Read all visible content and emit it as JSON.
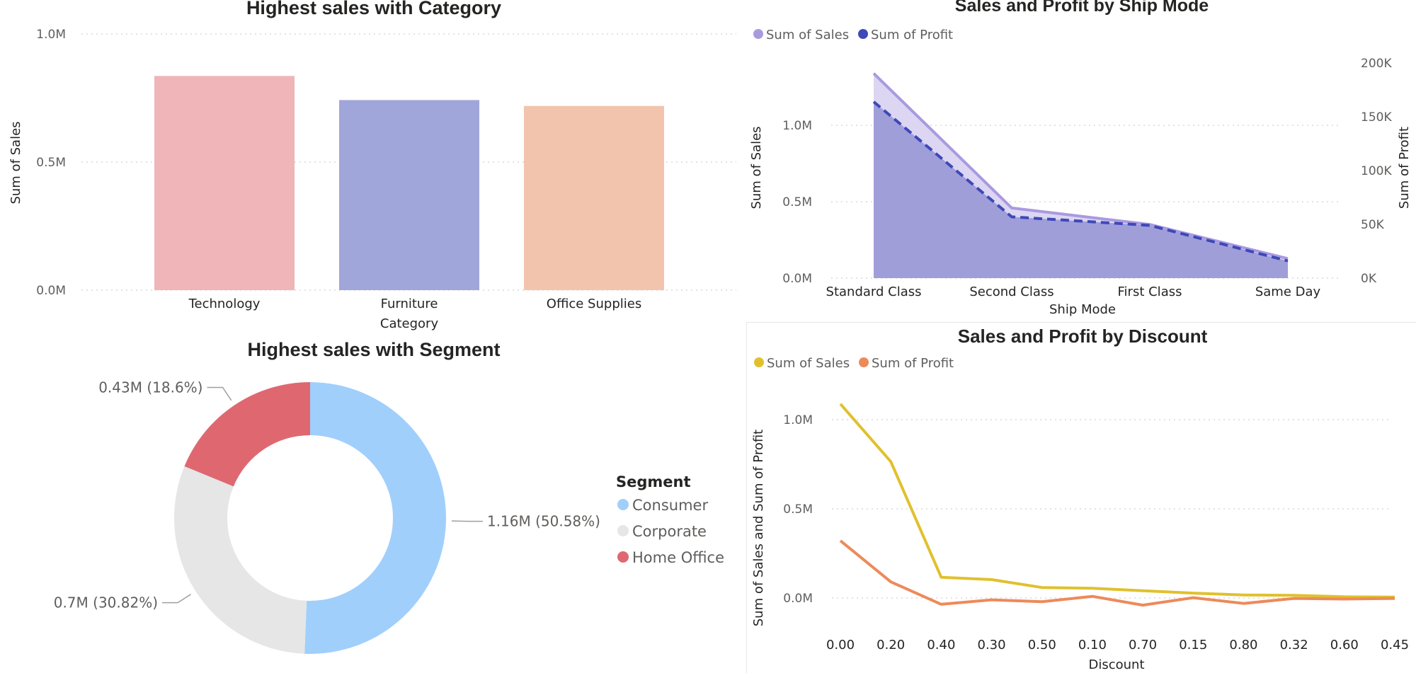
{
  "chart_data": [
    {
      "type": "bar",
      "title": "Highest sales with Category",
      "xlabel": "Category",
      "ylabel": "Sum of Sales",
      "categories": [
        "Technology",
        "Furniture",
        "Office Supplies"
      ],
      "values": [
        836154,
        741999,
        719047
      ],
      "ylim": [
        0,
        1000000
      ],
      "yticks": [
        {
          "value": 0,
          "label": "0.0M"
        },
        {
          "value": 500000,
          "label": "0.5M"
        },
        {
          "value": 1000000,
          "label": "1.0M"
        }
      ],
      "colors": [
        "#efb5b9",
        "#a0a6d9",
        "#f3c4ad"
      ],
      "grid": true
    },
    {
      "type": "area",
      "title": "Sales and Profit by Ship Mode",
      "xlabel": "Ship Mode",
      "ylabel": "Sum of Sales",
      "y2label": "Sum of Profit",
      "categories": [
        "Standard Class",
        "Second Class",
        "First Class",
        "Same Day"
      ],
      "series": [
        {
          "name": "Sum of Sales",
          "axis": "left",
          "values": [
            1340000,
            459000,
            351000,
            128000
          ],
          "color": "#a99ae0"
        },
        {
          "name": "Sum of Profit",
          "axis": "right",
          "values": [
            164000,
            57000,
            49000,
            16000
          ],
          "color": "#3d49b8"
        }
      ],
      "ylim": [
        0,
        1450000
      ],
      "y2lim": [
        0,
        206000
      ],
      "yticks": [
        {
          "value": 0,
          "label": "0.0M"
        },
        {
          "value": 500000,
          "label": "0.5M"
        },
        {
          "value": 1000000,
          "label": "1.0M"
        }
      ],
      "y2ticks": [
        {
          "value": 0,
          "label": "0K"
        },
        {
          "value": 50000,
          "label": "50K"
        },
        {
          "value": 100000,
          "label": "100K"
        },
        {
          "value": 150000,
          "label": "150K"
        },
        {
          "value": 200000,
          "label": "200K"
        }
      ],
      "legend": "top-left",
      "grid": true
    },
    {
      "type": "pie",
      "title": "Highest sales with Segment",
      "legend_title": "Segment",
      "labels": [
        "Consumer",
        "Corporate",
        "Home Office"
      ],
      "values": [
        1160000,
        700000,
        430000
      ],
      "percents": [
        50.58,
        30.82,
        18.6
      ],
      "data_labels": [
        "1.16M (50.58%)",
        "0.7M (30.82%)",
        "0.43M (18.6%)"
      ],
      "colors": [
        "#a0cffc",
        "#e6e6e6",
        "#df6870"
      ],
      "donut": true,
      "legend": "right"
    },
    {
      "type": "line",
      "title": "Sales and Profit by Discount",
      "xlabel": "Discount",
      "ylabel": "Sum of Sales and Sum of Profit",
      "categories": [
        "0.00",
        "0.20",
        "0.40",
        "0.30",
        "0.50",
        "0.10",
        "0.70",
        "0.15",
        "0.80",
        "0.32",
        "0.60",
        "0.45"
      ],
      "series": [
        {
          "name": "Sum of Sales",
          "values": [
            1087908,
            764595,
            116418,
            103227,
            58918,
            54170,
            40620,
            27558,
            16963,
            14493,
            6645,
            5289
          ],
          "color": "#e0c12d"
        },
        {
          "name": "Sum of Profit",
          "values": [
            320988,
            90338,
            -35427,
            -10369,
            -20506,
            9030,
            -40075,
            1418,
            -30540,
            -2391,
            -5945,
            -2493
          ],
          "color": "#ed8a5a"
        }
      ],
      "ylim": [
        -120000,
        1250000
      ],
      "yticks": [
        {
          "value": 0,
          "label": "0.0M"
        },
        {
          "value": 500000,
          "label": "0.5M"
        },
        {
          "value": 1000000,
          "label": "1.0M"
        }
      ],
      "legend": "top-left",
      "grid": true
    }
  ]
}
